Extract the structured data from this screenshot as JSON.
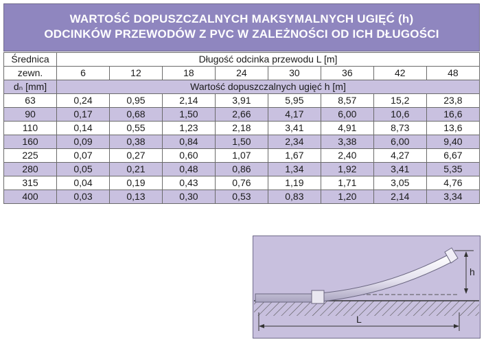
{
  "title": {
    "line1": "WARTOŚĆ DOPUSZCZALNYCH MAKSYMALNYCH UGIĘĆ (h)",
    "line2": "ODCINKÓW PRZEWODÓW Z PVC W ZALEŻNOŚCI OD ICH DŁUGOŚCI"
  },
  "table": {
    "head_col_label_1": "Średnica",
    "head_col_label_2": "zewn.",
    "head_col_label_3": "dₙ [mm]",
    "length_header": "Długość odcinka przewodu L [m]",
    "lengths": [
      "6",
      "12",
      "18",
      "24",
      "30",
      "36",
      "42",
      "48"
    ],
    "deflection_header": "Wartość dopuszczalnych ugięć h [m]",
    "rows": [
      {
        "d": "63",
        "values": [
          "0,24",
          "0,95",
          "2,14",
          "3,91",
          "5,95",
          "8,57",
          "15,2",
          "23,8"
        ]
      },
      {
        "d": "90",
        "values": [
          "0,17",
          "0,68",
          "1,50",
          "2,66",
          "4,17",
          "6,00",
          "10,6",
          "16,6"
        ]
      },
      {
        "d": "110",
        "values": [
          "0,14",
          "0,55",
          "1,23",
          "2,18",
          "3,41",
          "4,91",
          "8,73",
          "13,6"
        ]
      },
      {
        "d": "160",
        "values": [
          "0,09",
          "0,38",
          "0,84",
          "1,50",
          "2,34",
          "3,38",
          "6,00",
          "9,40"
        ]
      },
      {
        "d": "225",
        "values": [
          "0,07",
          "0,27",
          "0,60",
          "1,07",
          "1,67",
          "2,40",
          "4,27",
          "6,67"
        ]
      },
      {
        "d": "280",
        "values": [
          "0,05",
          "0,21",
          "0,48",
          "0,86",
          "1,34",
          "1,92",
          "3,41",
          "5,35"
        ]
      },
      {
        "d": "315",
        "values": [
          "0,04",
          "0,19",
          "0,43",
          "0,76",
          "1,19",
          "1,71",
          "3,05",
          "4,76"
        ]
      },
      {
        "d": "400",
        "values": [
          "0,03",
          "0,13",
          "0,30",
          "0,53",
          "0,83",
          "1,20",
          "2,14",
          "3,34"
        ]
      }
    ]
  },
  "diagram": {
    "label_h": "h",
    "label_l": "L"
  },
  "colors": {
    "title_bg": "#8f86bf",
    "band_bg": "#c9c1e0",
    "diagram_bg": "#c8c0de"
  }
}
